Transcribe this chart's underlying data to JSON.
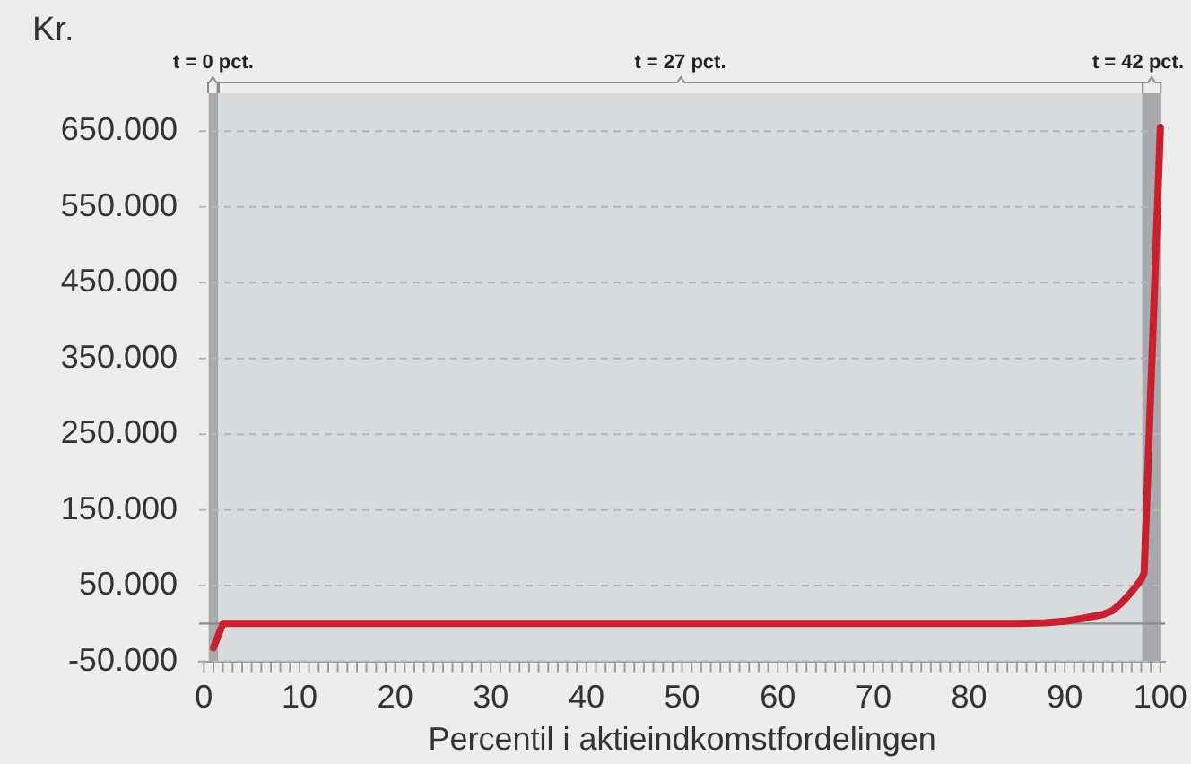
{
  "chart_data": {
    "type": "line",
    "ylabel": "Kr.",
    "xlabel": "Percentil i aktieindkomstfordelingen",
    "series": [
      {
        "color": "#c8202f",
        "x": [
          1,
          2,
          10,
          20,
          30,
          40,
          50,
          60,
          70,
          80,
          85,
          88,
          90,
          92,
          94,
          95,
          96,
          97,
          98,
          98.3,
          100
        ],
        "values": [
          -32000,
          0,
          0,
          0,
          0,
          0,
          0,
          0,
          0,
          0,
          0,
          1000,
          3000,
          7000,
          12000,
          17000,
          28000,
          42000,
          58000,
          67000,
          655000
        ]
      }
    ],
    "xlim": [
      -0.5,
      100.5
    ],
    "xticks": [
      0,
      10,
      20,
      30,
      40,
      50,
      60,
      70,
      80,
      90,
      100
    ],
    "ylim": [
      -50000,
      700000
    ],
    "yticks": [
      {
        "value": -50000,
        "label": "-50.000"
      },
      {
        "value": 50000,
        "label": "50.000"
      },
      {
        "value": 150000,
        "label": "150.000"
      },
      {
        "value": 250000,
        "label": "250.000"
      },
      {
        "value": 350000,
        "label": "350.000"
      },
      {
        "value": 450000,
        "label": "450.000"
      },
      {
        "value": 550000,
        "label": "550.000"
      },
      {
        "value": 650000,
        "label": "650.000"
      }
    ],
    "bands": [
      {
        "axis": "x",
        "from": 0.5,
        "to": 1.5,
        "label": "t = 0 pct.",
        "color": "#a7a9ac"
      },
      {
        "axis": "x",
        "from": 1.5,
        "to": 98.1,
        "label": "t = 27 pct.",
        "color": "#d9dadc"
      },
      {
        "axis": "x",
        "from": 98.1,
        "to": 100,
        "label": "t = 42 pct.",
        "color": "#a7a9ac"
      }
    ],
    "ref_lines": [
      {
        "axis": "y",
        "value": 0,
        "color": "#8a8c8f",
        "line_style": "solid"
      }
    ],
    "grid": "y",
    "legend": false,
    "marker": "none",
    "line_style": "solid"
  }
}
